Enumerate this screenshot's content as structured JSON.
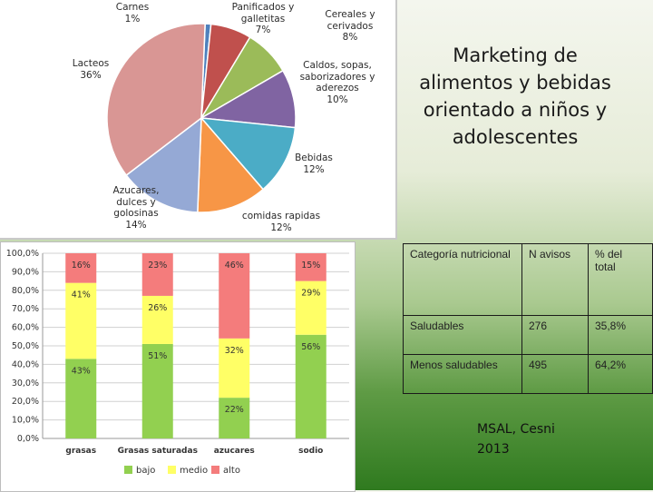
{
  "title": "Marketing de alimentos y bebidas orientado a niños y adolescentes",
  "source_lines": [
    "MSAL, Cesni",
    "2013"
  ],
  "table": {
    "header": [
      "Categoría nutricional",
      "N avisos",
      "% del total"
    ],
    "rows": [
      [
        "Saludables",
        "276",
        "35,8%"
      ],
      [
        "Menos saludables",
        "495",
        "64,2%"
      ]
    ]
  },
  "chart_data": [
    {
      "type": "pie",
      "slices": [
        {
          "label": [
            "Carnes",
            "1%"
          ],
          "value": 1,
          "color": "#4f81bd"
        },
        {
          "label": [
            "Panificados y",
            "galletitas",
            "7%"
          ],
          "value": 7,
          "color": "#c0504d"
        },
        {
          "label": [
            "Cereales y",
            "cerivados",
            "8%"
          ],
          "value": 8,
          "color": "#9bbb59"
        },
        {
          "label": [
            "Caldos, sopas,",
            "saborizadores y",
            "aderezos",
            "10%"
          ],
          "value": 10,
          "color": "#8064a2"
        },
        {
          "label": [
            "Bebidas",
            "12%"
          ],
          "value": 12,
          "color": "#4bacc6"
        },
        {
          "label": [
            "comidas rapidas",
            "12%"
          ],
          "value": 12,
          "color": "#f79646"
        },
        {
          "label": [
            "Azucares,",
            "dulces y",
            "golosinas",
            "14%"
          ],
          "value": 14,
          "color": "#95a9d5"
        },
        {
          "label": [
            "Lacteos",
            "36%"
          ],
          "value": 36,
          "color": "#d99694"
        }
      ]
    },
    {
      "type": "bar",
      "stacked": true,
      "categories": [
        "grasas",
        "Grasas saturadas",
        "azucares",
        "sodio"
      ],
      "series": [
        {
          "name": "bajo",
          "values": [
            43,
            51,
            22,
            56
          ],
          "labels": [
            "43%",
            "51%",
            "22%",
            "56%"
          ],
          "color": "#92d050"
        },
        {
          "name": "medio",
          "values": [
            41,
            26,
            32,
            29
          ],
          "labels": [
            "41%",
            "26%",
            "32%",
            "29%"
          ],
          "color": "#ffff66"
        },
        {
          "name": "alto",
          "values": [
            16,
            23,
            46,
            15
          ],
          "labels": [
            "16%",
            "23%",
            "46%",
            "15%"
          ],
          "color": "#f47c7c"
        }
      ],
      "yticks": [
        "0,0%",
        "10,0%",
        "20,0%",
        "30,0%",
        "40,0%",
        "50,0%",
        "60,0%",
        "70,0%",
        "80,0%",
        "90,0%",
        "100,0%"
      ],
      "ylim": [
        0,
        100
      ],
      "grid": true,
      "legend_position": "bottom"
    }
  ]
}
